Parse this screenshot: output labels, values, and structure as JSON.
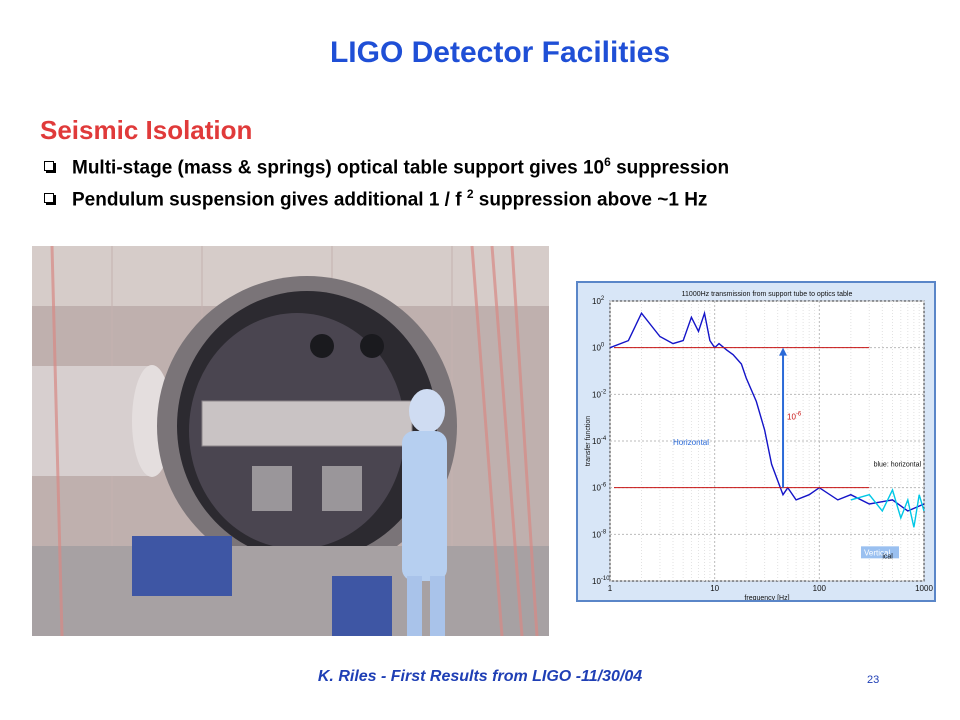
{
  "slide": {
    "title": "LIGO Detector Facilities",
    "section": "Seismic Isolation",
    "bullets": [
      {
        "pre": "Multi-stage (mass & springs) optical table support gives 10",
        "sup": "6",
        "post": " suppression"
      },
      {
        "pre": "Pendulum suspension gives additional 1 / f ",
        "sup": "2",
        "post": " suppression above ~1 Hz"
      }
    ],
    "footer": "K. Riles - First Results from LIGO -11/30/04",
    "page_number": "23"
  },
  "colors": {
    "title": "#1f4fd6",
    "section": "#e03a3a",
    "footer": "#1f3fb5",
    "horizontal_trace": "#1414c8",
    "vertical_trace": "#00c8e6",
    "reference_lines": "#c81414",
    "arrow": "#2a6ad8"
  },
  "chart_data": {
    "type": "line",
    "title": "11000Hz transmission from support tube to optics table",
    "xlabel": "frequency [Hz]",
    "ylabel": "transfer function",
    "x_scale": "log",
    "y_scale": "log",
    "xlim": [
      1,
      1000
    ],
    "ylim": [
      1e-10,
      100.0
    ],
    "x_ticks": [
      "1",
      "10",
      "100",
      "1000"
    ],
    "y_ticks": [
      "10^2",
      "10^0",
      "10^-2",
      "10^-4",
      "10^-6",
      "10^-8",
      "10^-10"
    ],
    "grid": true,
    "series": [
      {
        "name": "Horizontal",
        "x": [
          1,
          1.5,
          2,
          3,
          4,
          5,
          6,
          7,
          8,
          9,
          10,
          11,
          13,
          15,
          18,
          20,
          25,
          30,
          35,
          40,
          45,
          50,
          60,
          80,
          100,
          150,
          200,
          300,
          500,
          700,
          1000
        ],
        "y": [
          1,
          2,
          30,
          3,
          1.5,
          2,
          20,
          5,
          30,
          2,
          1,
          1.5,
          0.8,
          0.5,
          0.2,
          0.05,
          0.005,
          0.0003,
          1e-05,
          2e-06,
          5e-07,
          1e-06,
          3e-07,
          5e-07,
          1e-06,
          3e-07,
          5e-07,
          2e-07,
          3e-07,
          1e-07,
          2e-07
        ]
      },
      {
        "name": "Vertical",
        "x": [
          200,
          300,
          400,
          500,
          600,
          700,
          800,
          900,
          1000
        ],
        "y": [
          3e-07,
          5e-07,
          1e-07,
          8e-07,
          5e-08,
          3e-07,
          2e-08,
          5e-07,
          1e-07
        ]
      }
    ],
    "annotations": [
      {
        "text": "Horizontal"
      },
      {
        "text": "Vertical"
      },
      {
        "text": "blue: horizontal"
      },
      {
        "text": "ical"
      },
      {
        "text": "10^-6"
      }
    ],
    "reference_lines": [
      1,
      1e-06
    ]
  }
}
